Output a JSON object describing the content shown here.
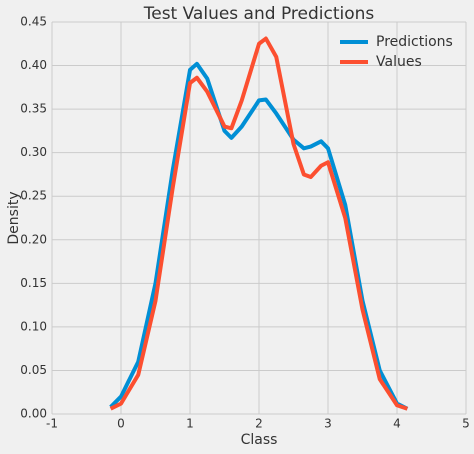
{
  "chart_data": {
    "type": "line",
    "title": "Test Values and Predictions",
    "x_label": "Class",
    "y_label": "Density",
    "x": [
      -0.15,
      0,
      0.25,
      0.5,
      0.75,
      1,
      1.1,
      1.25,
      1.5,
      1.6,
      1.75,
      2,
      2.1,
      2.25,
      2.5,
      2.65,
      2.75,
      2.9,
      3,
      3.25,
      3.5,
      3.75,
      4,
      4.15
    ],
    "series": [
      {
        "name": "Predictions",
        "color": "#008fd5",
        "values": [
          0.008,
          0.02,
          0.06,
          0.15,
          0.28,
          0.395,
          0.402,
          0.385,
          0.325,
          0.317,
          0.33,
          0.36,
          0.361,
          0.345,
          0.315,
          0.305,
          0.307,
          0.313,
          0.305,
          0.24,
          0.13,
          0.05,
          0.012,
          0.006
        ]
      },
      {
        "name": "Values",
        "color": "#fc4f30",
        "values": [
          0.006,
          0.012,
          0.045,
          0.13,
          0.26,
          0.38,
          0.386,
          0.37,
          0.33,
          0.328,
          0.36,
          0.425,
          0.431,
          0.41,
          0.31,
          0.275,
          0.272,
          0.285,
          0.289,
          0.225,
          0.12,
          0.04,
          0.01,
          0.006
        ]
      }
    ],
    "xlim": [
      -1,
      5
    ],
    "xticks": [
      -1,
      0,
      1,
      2,
      3,
      4,
      5
    ],
    "ylim": [
      0,
      0.45
    ],
    "yticks": [
      {
        "value": 0,
        "label": "0.00"
      },
      {
        "value": 0.05,
        "label": "0.05"
      },
      {
        "value": 0.1,
        "label": "0.10"
      },
      {
        "value": 0.15,
        "label": "0.15"
      },
      {
        "value": 0.2,
        "label": "0.20"
      },
      {
        "value": 0.25,
        "label": "0.25"
      },
      {
        "value": 0.3,
        "label": "0.30"
      },
      {
        "value": 0.35,
        "label": "0.35"
      },
      {
        "value": 0.4,
        "label": "0.40"
      },
      {
        "value": 0.45,
        "label": "0.45"
      }
    ],
    "grid": true,
    "legend": "upper right"
  }
}
